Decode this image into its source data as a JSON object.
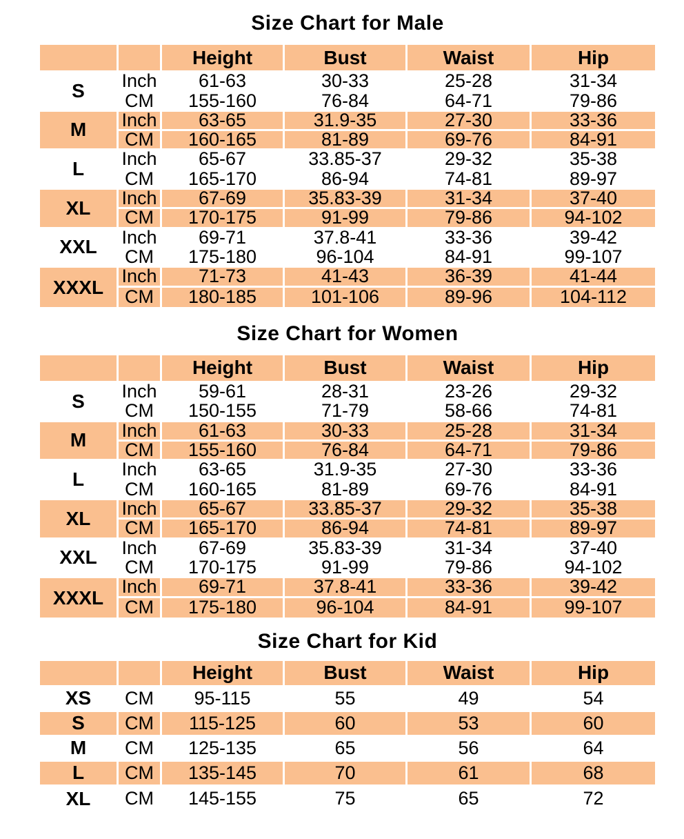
{
  "page": {
    "background_color": "#ffffff",
    "text_color": "#000000",
    "accent_color": "#FABF8F",
    "gridline_color": "#ffffff"
  },
  "chart_data": [
    {
      "type": "table",
      "title": "Size Chart for Male",
      "columns": [
        "",
        "",
        "Height",
        "Bust",
        "Waist",
        "Hip"
      ],
      "groups": [
        {
          "size": "S",
          "rows": [
            [
              "Inch",
              "61-63",
              "30-33",
              "25-28",
              "31-34"
            ],
            [
              "CM",
              "155-160",
              "76-84",
              "64-71",
              "79-86"
            ]
          ]
        },
        {
          "size": "M",
          "rows": [
            [
              "Inch",
              "63-65",
              "31.9-35",
              "27-30",
              "33-36"
            ],
            [
              "CM",
              "160-165",
              "81-89",
              "69-76",
              "84-91"
            ]
          ]
        },
        {
          "size": "L",
          "rows": [
            [
              "Inch",
              "65-67",
              "33.85-37",
              "29-32",
              "35-38"
            ],
            [
              "CM",
              "165-170",
              "86-94",
              "74-81",
              "89-97"
            ]
          ]
        },
        {
          "size": "XL",
          "rows": [
            [
              "Inch",
              "67-69",
              "35.83-39",
              "31-34",
              "37-40"
            ],
            [
              "CM",
              "170-175",
              "91-99",
              "79-86",
              "94-102"
            ]
          ]
        },
        {
          "size": "XXL",
          "rows": [
            [
              "Inch",
              "69-71",
              "37.8-41",
              "33-36",
              "39-42"
            ],
            [
              "CM",
              "175-180",
              "96-104",
              "84-91",
              "99-107"
            ]
          ]
        },
        {
          "size": "XXXL",
          "rows": [
            [
              "Inch",
              "71-73",
              "41-43",
              "36-39",
              "41-44"
            ],
            [
              "CM",
              "180-185",
              "101-106",
              "89-96",
              "104-112"
            ]
          ]
        }
      ]
    },
    {
      "type": "table",
      "title": "Size Chart for Women",
      "columns": [
        "",
        "",
        "Height",
        "Bust",
        "Waist",
        "Hip"
      ],
      "groups": [
        {
          "size": "S",
          "rows": [
            [
              "Inch",
              "59-61",
              "28-31",
              "23-26",
              "29-32"
            ],
            [
              "CM",
              "150-155",
              "71-79",
              "58-66",
              "74-81"
            ]
          ]
        },
        {
          "size": "M",
          "rows": [
            [
              "Inch",
              "61-63",
              "30-33",
              "25-28",
              "31-34"
            ],
            [
              "CM",
              "155-160",
              "76-84",
              "64-71",
              "79-86"
            ]
          ]
        },
        {
          "size": "L",
          "rows": [
            [
              "Inch",
              "63-65",
              "31.9-35",
              "27-30",
              "33-36"
            ],
            [
              "CM",
              "160-165",
              "81-89",
              "69-76",
              "84-91"
            ]
          ]
        },
        {
          "size": "XL",
          "rows": [
            [
              "Inch",
              "65-67",
              "33.85-37",
              "29-32",
              "35-38"
            ],
            [
              "CM",
              "165-170",
              "86-94",
              "74-81",
              "89-97"
            ]
          ]
        },
        {
          "size": "XXL",
          "rows": [
            [
              "Inch",
              "67-69",
              "35.83-39",
              "31-34",
              "37-40"
            ],
            [
              "CM",
              "170-175",
              "91-99",
              "79-86",
              "94-102"
            ]
          ]
        },
        {
          "size": "XXXL",
          "rows": [
            [
              "Inch",
              "69-71",
              "37.8-41",
              "33-36",
              "39-42"
            ],
            [
              "CM",
              "175-180",
              "96-104",
              "84-91",
              "99-107"
            ]
          ]
        }
      ]
    },
    {
      "type": "table",
      "title": "Size Chart for Kid",
      "columns": [
        "",
        "",
        "Height",
        "Bust",
        "Waist",
        "Hip"
      ],
      "groups": [
        {
          "size": "XS",
          "rows": [
            [
              "CM",
              "95-115",
              "55",
              "49",
              "54"
            ]
          ]
        },
        {
          "size": "S",
          "rows": [
            [
              "CM",
              "115-125",
              "60",
              "53",
              "60"
            ]
          ]
        },
        {
          "size": "M",
          "rows": [
            [
              "CM",
              "125-135",
              "65",
              "56",
              "64"
            ]
          ]
        },
        {
          "size": "L",
          "rows": [
            [
              "CM",
              "135-145",
              "70",
              "61",
              "68"
            ]
          ]
        },
        {
          "size": "XL",
          "rows": [
            [
              "CM",
              "145-155",
              "75",
              "65",
              "72"
            ]
          ]
        }
      ]
    }
  ]
}
